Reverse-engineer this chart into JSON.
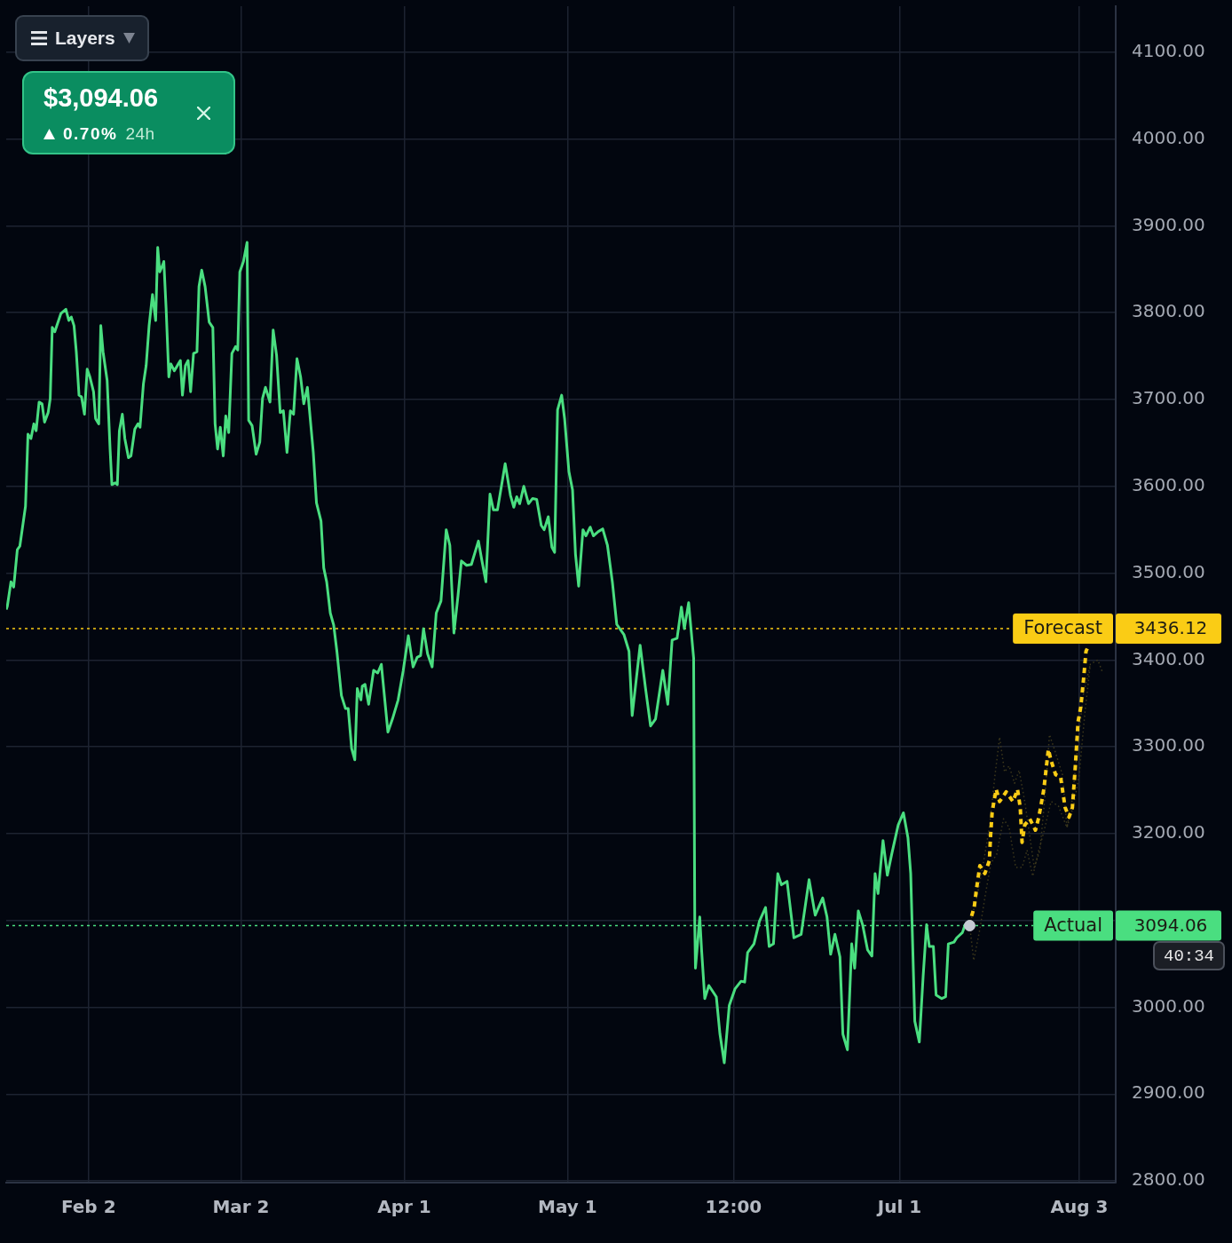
{
  "chart_data": {
    "type": "line",
    "marker": "none",
    "grid": true,
    "xlim": [
      "--01-17T21:00",
      "--08-09T17:00"
    ],
    "xticks": [
      {
        "value": "--02-02",
        "label": "Feb 2"
      },
      {
        "value": "--03-02",
        "label": "Mar 2"
      },
      {
        "value": "--04-01",
        "label": "Apr 1"
      },
      {
        "value": "--05-01",
        "label": "May 1"
      },
      {
        "value": "--05-31T12:00",
        "label": "12:00"
      },
      {
        "value": "--07-01",
        "label": "Jul 1"
      },
      {
        "value": "--08-03",
        "label": "Aug 3"
      }
    ],
    "ylim": [
      2798,
      4153
    ],
    "yticks": [
      {
        "value": 2800,
        "label": "2800.00"
      },
      {
        "value": 2900,
        "label": "2900.00"
      },
      {
        "value": 3000,
        "label": "3000.00"
      },
      {
        "value": 3100,
        "label": null
      },
      {
        "value": 3200,
        "label": "3200.00"
      },
      {
        "value": 3300,
        "label": "3300.00"
      },
      {
        "value": 3400,
        "label": "3400.00"
      },
      {
        "value": 3500,
        "label": "3500.00"
      },
      {
        "value": 3600,
        "label": "3600.00"
      },
      {
        "value": 3700,
        "label": "3700.00"
      },
      {
        "value": 3800,
        "label": "3800.00"
      },
      {
        "value": 3900,
        "label": "3900.00"
      },
      {
        "value": 4000,
        "label": "4000.00"
      },
      {
        "value": 4100,
        "label": "4100.00"
      }
    ],
    "series": [
      {
        "color": "#3d381c",
        "line_style": "dotted",
        "x": [
          "--07-13T21:00",
          "--07-15T03:00",
          "--07-16T06:00",
          "--07-17T12:00",
          "--07-18T13:00",
          "--07-19T09:00",
          "--07-20T07:00",
          "--07-21T03:00",
          "--07-22T03:00",
          "--07-22T23:00",
          "--07-24T00:00",
          "--07-24T22:00",
          "--07-25T18:00",
          "--07-26T19:00",
          "--07-27T15:00",
          "--07-28T13:00",
          "--07-29T16:00",
          "--07-30T22:00",
          "--07-31T18:00",
          "--08-01T16:00",
          "--08-02T17:00",
          "--08-03T17:00",
          "--08-05T01:00"
        ],
        "values": [
          3094,
          3125,
          3161,
          3207,
          3268,
          3311,
          3271,
          3278,
          3258,
          3273,
          3237,
          3197,
          3161,
          3181,
          3237,
          3314,
          3293,
          3268,
          3207,
          3237,
          3298,
          3359,
          3395
        ]
      },
      {
        "color": "#3d381c",
        "line_style": "dotted",
        "x": [
          "--07-13T21:00",
          "--07-14T15:00",
          "--07-15T18:00",
          "--07-16T19:00",
          "--07-17T19:00",
          "--07-18T20:00",
          "--07-20T02:00",
          "--07-21T03:00",
          "--07-22T08:00",
          "--07-23T12:00",
          "--07-24T10:00",
          "--07-25T11:00",
          "--07-26T14:00",
          "--07-27T12:00",
          "--07-28T20:00",
          "--07-30T04:00",
          "--07-31T18:00",
          "--08-01T23:00",
          "--08-03T00:00",
          "--08-04T01:00",
          "--08-05T01:00",
          "--08-06T10:00",
          "--08-07T08:00"
        ],
        "values": [
          3094,
          3054,
          3090,
          3131,
          3166,
          3176,
          3217,
          3207,
          3161,
          3161,
          3181,
          3151,
          3181,
          3202,
          3237,
          3232,
          3207,
          3232,
          3268,
          3339,
          3395,
          3400,
          3385
        ]
      },
      {
        "color": "#4ade80",
        "line_style": "solid",
        "x": [
          "--01-17T21:00",
          "--01-18T02:00",
          "--01-18T18:00",
          "--01-19T06:00",
          "--01-19T22:00",
          "--01-20T09:00",
          "--01-21T10:00",
          "--01-21T21:00",
          "--01-22T10:00",
          "--01-22T23:00",
          "--01-23T09:00",
          "--01-23T22:00",
          "--01-24T11:00",
          "--01-24T22:00",
          "--01-25T14:00",
          "--01-25T23:00",
          "--01-26T08:00",
          "--01-26T19:00",
          "--01-27T22:00",
          "--01-28T20:00",
          "--01-29T09:00",
          "--01-29T20:00",
          "--01-30T08:00",
          "--01-30T18:00",
          "--01-31T06:00",
          "--01-31T17:00",
          "--02-01T06:00",
          "--02-01T18:00",
          "--02-02T06:00",
          "--02-02T22:00",
          "--02-03T07:00",
          "--02-03T21:00",
          "--02-04T06:00",
          "--02-04T16:00",
          "--02-05T10:00",
          "--02-05T23:00",
          "--02-06T07:00",
          "--02-06T22:00",
          "--02-07T07:00",
          "--02-07T16:00",
          "--02-08T05:00",
          "--02-08T16:00",
          "--02-09T08:00",
          "--02-09T19:00",
          "--02-10T12:00",
          "--02-11T02:00",
          "--02-11T11:00",
          "--02-12T02:00",
          "--02-12T14:00",
          "--02-13T03:00",
          "--02-13T18:00",
          "--02-14T08:00",
          "--02-14T17:00",
          "--02-15T02:00",
          "--02-15T15:00",
          "--02-15T20:00",
          "--02-16T06:00",
          "--02-16T18:00",
          "--02-17T03:00",
          "--02-17T18:00",
          "--02-18T12:00",
          "--02-18T21:00",
          "--02-19T06:00",
          "--02-19T19:00",
          "--02-20T07:00",
          "--02-20T18:00",
          "--02-21T07:00",
          "--02-21T22:00",
          "--02-22T07:00",
          "--02-22T19:00",
          "--02-23T10:00",
          "--02-24T04:00",
          "--02-24T20:00",
          "--02-25T06:00",
          "--02-25T17:00",
          "--02-26T05:00",
          "--02-26T18:00",
          "--02-27T05:00",
          "--02-27T18:00",
          "--02-28T08:00",
          "--03-01T00:00",
          "--03-01T10:00",
          "--03-01T19:00",
          "--03-02T11:00",
          "--03-03T03:00",
          "--03-03T10:00",
          "--03-04T01:00",
          "--03-04T19:00",
          "--03-05T11:00",
          "--03-05T23:00",
          "--03-06T12:00",
          "--03-07T08:00",
          "--03-07T22:00",
          "--03-08T13:00",
          "--03-09T05:00",
          "--03-09T19:00",
          "--03-10T11:00",
          "--03-11T02:00",
          "--03-11T16:00",
          "--03-12T07:00",
          "--03-12T23:00",
          "--03-13T13:00",
          "--03-14T05:00",
          "--03-15T07:00",
          "--03-15T21:00",
          "--03-16T17:00",
          "--03-17T05:00",
          "--03-17T18:00",
          "--03-18T10:00",
          "--03-19T01:00",
          "--03-19T15:00",
          "--03-20T11:00",
          "--03-21T05:00",
          "--03-21T17:00",
          "--03-22T08:00",
          "--03-22T22:00",
          "--03-23T09:00",
          "--03-24T01:00",
          "--03-24T07:00",
          "--03-24T19:00",
          "--03-25T11:00",
          "--03-26T09:00",
          "--03-27T03:00",
          "--03-27T19:00",
          "--03-29T00:00",
          "--03-29T20:00",
          "--03-30T21:00",
          "--03-31T19:00",
          "--04-01T18:00",
          "--04-02T15:00",
          "--04-03T09:00",
          "--04-04T00:00",
          "--04-04T13:00",
          "--04-05T07:00",
          "--04-06T03:00",
          "--04-06T21:00",
          "--04-07T18:00",
          "--04-08T17:00",
          "--04-09T09:00",
          "--04-10T03:00",
          "--04-10T21:00",
          "--04-11T12:00",
          "--04-12T11:00",
          "--04-13T08:00",
          "--04-14T15:00",
          "--04-15T06:00",
          "--04-16T00:00",
          "--04-16T18:00",
          "--04-17T09:00",
          "--04-18T03:00",
          "--04-19T13:00",
          "--04-20T12:00",
          "--04-21T03:00",
          "--04-21T16:00",
          "--04-22T05:00",
          "--04-22T23:00",
          "--04-23T20:00",
          "--04-24T14:00",
          "--04-25T08:00",
          "--04-26T04:00",
          "--04-26T17:00",
          "--04-27T11:00",
          "--04-28T03:00",
          "--04-28T15:00",
          "--04-29T04:00",
          "--04-29T22:00",
          "--04-30T11:00",
          "--05-01T06:00",
          "--05-01T22:00",
          "--05-02T11:00",
          "--05-03T01:00",
          "--05-03T20:00",
          "--05-04T09:00",
          "--05-05T04:00",
          "--05-05T18:00",
          "--05-06T16:00",
          "--05-07T11:00",
          "--05-08T08:00",
          "--05-09T06:00",
          "--05-10T01:00",
          "--05-11T09:00",
          "--05-12T07:00",
          "--05-12T21:00",
          "--05-13T16:00",
          "--05-14T08:00",
          "--05-15T08:00",
          "--05-16T06:00",
          "--05-17T04:00",
          "--05-18T12:00",
          "--05-19T10:00",
          "--05-20T05:00",
          "--05-21T03:00",
          "--05-21T22:00",
          "--05-22T11:00",
          "--05-23T06:00",
          "--05-24T04:00",
          "--05-24T09:00",
          "--05-24T12:00",
          "--05-25T07:00",
          "--05-25T15:00",
          "--05-26T05:00",
          "--05-26T23:00",
          "--05-28T08:00",
          "--05-29T00:00",
          "--05-29T19:00",
          "--05-30T17:00",
          "--05-31T18:00",
          "--06-01T21:00",
          "--06-02T13:00",
          "--06-03T02:00",
          "--06-04T06:00",
          "--06-05T06:00",
          "--06-06T09:00",
          "--06-07T01:00",
          "--06-07T20:00",
          "--06-08T15:00",
          "--06-09T07:00",
          "--06-10T08:00",
          "--06-11T14:00",
          "--06-12T22:00",
          "--06-14T09:00",
          "--06-15T12:00",
          "--06-16T21:00",
          "--06-17T16:00",
          "--06-18T08:00",
          "--06-19T03:00",
          "--06-20T01:00",
          "--06-20T14:00",
          "--06-21T10:00",
          "--06-22T05:00",
          "--06-22T18:00",
          "--06-23T10:00",
          "--06-24T05:00",
          "--06-25T03:00",
          "--06-25T22:00",
          "--06-26T12:00",
          "--06-27T01:00",
          "--06-27T23:00",
          "--06-28T18:00",
          "--06-29T13:00",
          "--06-30T18:00",
          "--07-01T17:00",
          "--07-02T13:00",
          "--07-03T01:00",
          "--07-03T19:00",
          "--07-04T15:00",
          "--07-05T08:00",
          "--07-05T23:00",
          "--07-06T11:00",
          "--07-07T05:00",
          "--07-07T17:00",
          "--07-08T18:00",
          "--07-09T11:00",
          "--07-09T23:00",
          "--07-11T00:00",
          "--07-11T12:00",
          "--07-12T13:00",
          "--07-13T01:00",
          "--07-13T21:00"
        ],
        "values": [
          3458,
          3462,
          3490,
          3484,
          3527,
          3531,
          3577,
          3660,
          3655,
          3672,
          3664,
          3697,
          3695,
          3674,
          3685,
          3701,
          3783,
          3778,
          3799,
          3804,
          3791,
          3795,
          3785,
          3755,
          3705,
          3703,
          3683,
          3735,
          3726,
          3709,
          3678,
          3672,
          3785,
          3755,
          3722,
          3643,
          3602,
          3604,
          3602,
          3664,
          3683,
          3655,
          3633,
          3635,
          3666,
          3672,
          3668,
          3718,
          3739,
          3785,
          3821,
          3791,
          3875,
          3847,
          3855,
          3859,
          3805,
          3726,
          3741,
          3733,
          3741,
          3745,
          3705,
          3739,
          3745,
          3709,
          3753,
          3755,
          3830,
          3849,
          3830,
          3789,
          3783,
          3672,
          3643,
          3668,
          3635,
          3681,
          3662,
          3753,
          3761,
          3757,
          3847,
          3859,
          3881,
          3676,
          3670,
          3637,
          3651,
          3701,
          3714,
          3697,
          3780,
          3751,
          3685,
          3687,
          3639,
          3687,
          3683,
          3747,
          3726,
          3695,
          3714,
          3639,
          3581,
          3560,
          3506,
          3490,
          3454,
          3440,
          3410,
          3359,
          3344,
          3344,
          3298,
          3285,
          3367,
          3354,
          3370,
          3372,
          3349,
          3388,
          3385,
          3395,
          3317,
          3332,
          3354,
          3387,
          3428,
          3392,
          3403,
          3405,
          3436,
          3407,
          3392,
          3454,
          3468,
          3550,
          3532,
          3431,
          3474,
          3514,
          3509,
          3510,
          3537,
          3515,
          3490,
          3591,
          3573,
          3573,
          3626,
          3590,
          3576,
          3588,
          3580,
          3600,
          3580,
          3586,
          3585,
          3555,
          3550,
          3565,
          3530,
          3524,
          3688,
          3705,
          3678,
          3617,
          3596,
          3522,
          3485,
          3550,
          3543,
          3553,
          3543,
          3548,
          3551,
          3532,
          3489,
          3441,
          3429,
          3410,
          3336,
          3380,
          3417,
          3367,
          3324,
          3332,
          3388,
          3349,
          3423,
          3425,
          3461,
          3436,
          3466,
          3402,
          3095,
          3045,
          3104,
          3066,
          3010,
          3025,
          3012,
          2969,
          2936,
          3002,
          3021,
          3030,
          3029,
          3063,
          3073,
          3099,
          3115,
          3070,
          3073,
          3154,
          3141,
          3145,
          3080,
          3084,
          3147,
          3106,
          3126,
          3104,
          3061,
          3084,
          3058,
          2969,
          2951,
          3073,
          3045,
          3111,
          3095,
          3066,
          3059,
          3154,
          3131,
          3192,
          3152,
          3176,
          3210,
          3224,
          3195,
          3154,
          2984,
          2960,
          3036,
          3095,
          3070,
          3070,
          3014,
          3010,
          3012,
          3073,
          3075,
          3080,
          3086,
          3095,
          3094
        ]
      },
      {
        "color": "#facc15",
        "line_style": "dashed",
        "x": [
          "--07-13T21:00",
          "--07-14T02:00",
          "--07-14T17:00",
          "--07-15T03:00",
          "--07-15T18:00",
          "--07-16T16:00",
          "--07-17T12:00",
          "--07-17T17:00",
          "--07-18T00:00",
          "--07-18T08:00",
          "--07-18T18:00",
          "--07-19T09:00",
          "--07-20T14:00",
          "--07-21T20:00",
          "--07-22T16:00",
          "--07-23T04:00",
          "--07-23T12:00",
          "--07-24T00:00",
          "--07-24T22:00",
          "--07-25T23:00",
          "--07-26T14:00",
          "--07-27T12:00",
          "--07-28T08:00",
          "--07-28T20:00",
          "--07-29T16:00",
          "--07-30T14:00",
          "--07-31T10:00",
          "--08-01T03:00",
          "--08-01T18:00",
          "--08-02T07:00",
          "--08-02T19:00",
          "--08-03T07:00",
          "--08-03T20:00",
          "--08-04T06:00",
          "--08-04T13:00"
        ],
        "values": [
          3094,
          3102,
          3115,
          3136,
          3163,
          3154,
          3169,
          3197,
          3224,
          3237,
          3251,
          3237,
          3248,
          3237,
          3251,
          3230,
          3190,
          3210,
          3217,
          3204,
          3219,
          3251,
          3297,
          3284,
          3268,
          3265,
          3230,
          3219,
          3230,
          3278,
          3329,
          3346,
          3380,
          3410,
          3414
        ]
      },
      {
        "type": "scatter",
        "color": "#c5c9d3",
        "marker": "circle",
        "x": [
          "--07-13T21:00"
        ],
        "values": [
          3094
        ]
      }
    ],
    "ref_lines": [
      {
        "axis": "y",
        "value": 3436.12,
        "label": "Forecast",
        "color": "#facc15",
        "line_style": "dotted"
      },
      {
        "axis": "y",
        "value": 3094.06,
        "label": "Actual",
        "color": "#4ade80",
        "line_style": "dotted"
      }
    ],
    "annotations": [
      "Layers",
      "$3,094.06",
      "0.70%",
      "24h",
      "40:34",
      "3436.12",
      "3094.06"
    ]
  }
}
